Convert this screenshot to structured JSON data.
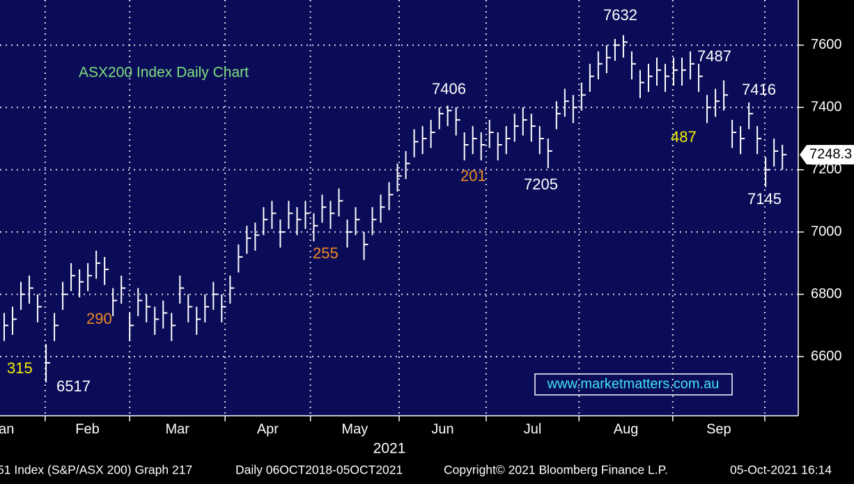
{
  "chart_data": {
    "type": "hlc",
    "title": "ASX200 Index Daily Chart",
    "color": "#ffffff",
    "background": "#0b0c58",
    "grid": true,
    "xlim": [
      -0.5,
      94.9
    ],
    "xticks": [
      4.9,
      15,
      26.4,
      36.6,
      47.2,
      57.6,
      68.7,
      79.9,
      90.9
    ],
    "months": [
      "Jan",
      "Feb",
      "Mar",
      "Apr",
      "May",
      "Jun",
      "Jul",
      "Aug",
      "Sep"
    ],
    "x_label": "2021",
    "ylim": [
      6410,
      7745
    ],
    "yticks": [
      6600,
      6800,
      7000,
      7200,
      7400,
      7600
    ],
    "high": [
      6740,
      6760,
      6840,
      6860,
      6800,
      6640,
      6740,
      6840,
      6900,
      6880,
      6900,
      6940,
      6920,
      6820,
      6860,
      6740,
      6820,
      6800,
      6760,
      6780,
      6740,
      6860,
      6800,
      6760,
      6800,
      6840,
      6800,
      6860,
      6960,
      7020,
      7030,
      7080,
      7100,
      7040,
      7100,
      7080,
      7100,
      7060,
      7120,
      7100,
      7140,
      7040,
      7080,
      7000,
      7080,
      7120,
      7160,
      7220,
      7260,
      7330,
      7340,
      7360,
      7400,
      7406,
      7400,
      7320,
      7340,
      7320,
      7360,
      7320,
      7340,
      7380,
      7400,
      7380,
      7340,
      7300,
      7420,
      7460,
      7440,
      7480,
      7540,
      7580,
      7600,
      7620,
      7632,
      7580,
      7520,
      7540,
      7560,
      7540,
      7560,
      7560,
      7580,
      7540,
      7440,
      7460,
      7487,
      7360,
      7340,
      7416,
      7340,
      7240,
      7300,
      7280
    ],
    "low": [
      6650,
      6670,
      6750,
      6770,
      6710,
      6517,
      6650,
      6750,
      6810,
      6790,
      6810,
      6850,
      6830,
      6730,
      6770,
      6650,
      6730,
      6710,
      6670,
      6690,
      6650,
      6770,
      6710,
      6670,
      6710,
      6750,
      6710,
      6770,
      6870,
      6930,
      6940,
      6990,
      7010,
      6950,
      7010,
      6990,
      7010,
      6970,
      7030,
      7010,
      7050,
      6950,
      6990,
      6910,
      6990,
      7030,
      7070,
      7130,
      7170,
      7240,
      7250,
      7270,
      7330,
      7340,
      7310,
      7230,
      7250,
      7230,
      7270,
      7230,
      7250,
      7290,
      7310,
      7290,
      7250,
      7205,
      7330,
      7370,
      7350,
      7390,
      7450,
      7490,
      7510,
      7550,
      7560,
      7490,
      7430,
      7450,
      7470,
      7450,
      7470,
      7470,
      7490,
      7450,
      7350,
      7370,
      7390,
      7270,
      7250,
      7330,
      7250,
      7145,
      7210,
      7200
    ],
    "close": [
      6700,
      6720,
      6800,
      6820,
      6760,
      6580,
      6700,
      6800,
      6860,
      6840,
      6860,
      6900,
      6880,
      6780,
      6820,
      6700,
      6780,
      6760,
      6720,
      6740,
      6700,
      6820,
      6760,
      6720,
      6760,
      6800,
      6760,
      6820,
      6920,
      6980,
      6990,
      7040,
      7060,
      7000,
      7060,
      7040,
      7060,
      7020,
      7080,
      7060,
      7100,
      7000,
      7040,
      6960,
      7040,
      7080,
      7120,
      7180,
      7220,
      7290,
      7300,
      7320,
      7380,
      7390,
      7360,
      7280,
      7300,
      7280,
      7320,
      7280,
      7300,
      7340,
      7360,
      7340,
      7300,
      7260,
      7380,
      7420,
      7400,
      7440,
      7500,
      7540,
      7560,
      7600,
      7610,
      7540,
      7480,
      7500,
      7520,
      7500,
      7520,
      7520,
      7540,
      7500,
      7400,
      7420,
      7440,
      7320,
      7300,
      7380,
      7300,
      7200,
      7260,
      7248.3
    ],
    "annotations": [
      "315",
      "6517",
      "290",
      "255",
      "7406",
      "201",
      "7205",
      "7632",
      "487",
      "7487",
      "7416",
      "7145"
    ],
    "watermark": "www.marketmatters.com.au",
    "footer": [
      "51 Index (S&P/ASX 200) Graph 217",
      "Daily 06OCT2018-05OCT2021",
      "Copyright© 2021 Bloomberg Finance L.P.",
      "05-Oct-2021 16:14"
    ]
  }
}
